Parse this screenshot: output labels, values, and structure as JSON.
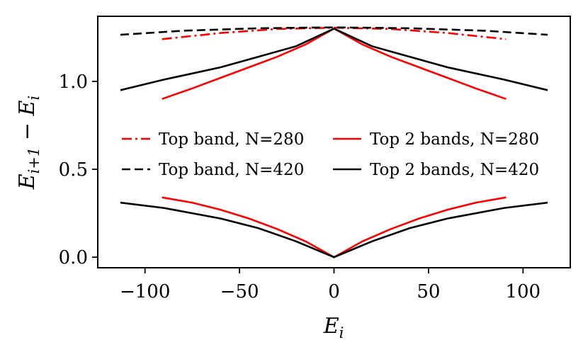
{
  "chart_data": {
    "type": "line",
    "title": "",
    "xlabel": "E_i",
    "ylabel": "E_{i+1} − E_i",
    "xlim": [
      -125,
      125
    ],
    "ylim": [
      -0.06,
      1.37
    ],
    "xticks": [
      -100,
      -50,
      0,
      50,
      100
    ],
    "xtick_labels": [
      "−100",
      "−50",
      "0",
      "50",
      "100"
    ],
    "yticks": [
      0.0,
      0.5,
      1.0
    ],
    "ytick_labels": [
      "0.0",
      "0.5",
      "1.0"
    ],
    "grid": false,
    "legend_position": "center",
    "series": [
      {
        "name": "Top band, N=280",
        "color": "#ff0000",
        "style": "dashdot",
        "x": [
          -91,
          -60,
          -30,
          0,
          30,
          60,
          91
        ],
        "y": [
          1.24,
          1.275,
          1.298,
          1.305,
          1.298,
          1.275,
          1.24
        ]
      },
      {
        "name": "Top band, N=420",
        "color": "#000000",
        "style": "dashed",
        "x": [
          -113,
          -80,
          -40,
          0,
          40,
          80,
          113
        ],
        "y": [
          1.265,
          1.288,
          1.302,
          1.307,
          1.302,
          1.288,
          1.265
        ]
      },
      {
        "name": "Top 2 bands, N=280",
        "color": "#ff0000",
        "style": "solid",
        "segments": [
          {
            "x": [
              -91,
              -75,
              -60,
              -45,
              -30,
              -15,
              0,
              15,
              30,
              45,
              60,
              75,
              91
            ],
            "y": [
              0.9,
              0.96,
              1.02,
              1.08,
              1.14,
              1.21,
              1.3,
              1.21,
              1.14,
              1.08,
              1.02,
              0.96,
              0.9
            ]
          },
          {
            "x": [
              -91,
              -75,
              -60,
              -45,
              -30,
              -15,
              0,
              15,
              30,
              45,
              60,
              75,
              91
            ],
            "y": [
              0.34,
              0.31,
              0.27,
              0.22,
              0.16,
              0.09,
              0.0,
              0.09,
              0.16,
              0.22,
              0.27,
              0.31,
              0.34
            ]
          }
        ]
      },
      {
        "name": "Top 2 bands, N=420",
        "color": "#000000",
        "style": "solid",
        "segments": [
          {
            "x": [
              -113,
              -90,
              -60,
              -40,
              -20,
              0,
              20,
              40,
              60,
              90,
              113
            ],
            "y": [
              0.95,
              1.01,
              1.08,
              1.14,
              1.2,
              1.3,
              1.2,
              1.14,
              1.08,
              1.01,
              0.95
            ]
          },
          {
            "x": [
              -113,
              -90,
              -60,
              -40,
              -20,
              0,
              20,
              40,
              60,
              90,
              113
            ],
            "y": [
              0.31,
              0.28,
              0.22,
              0.165,
              0.09,
              0.0,
              0.09,
              0.165,
              0.22,
              0.28,
              0.31
            ]
          }
        ]
      }
    ]
  }
}
